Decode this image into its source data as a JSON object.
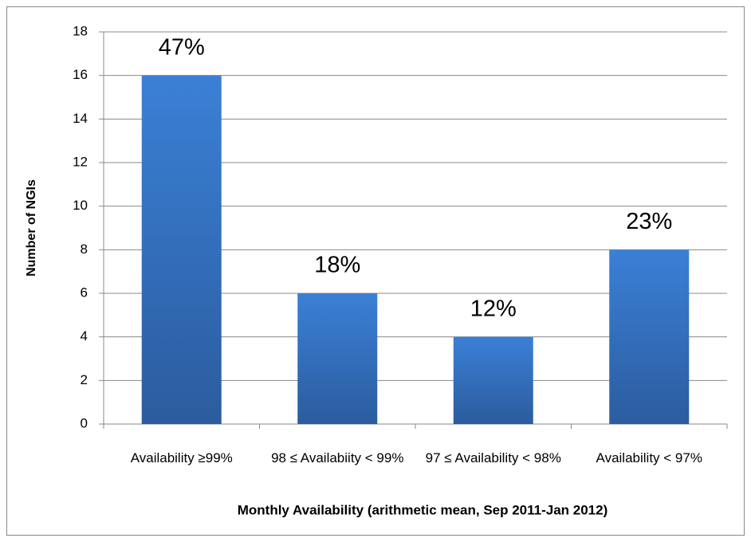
{
  "chart_data": {
    "type": "bar",
    "x_label": "Monthly Availability  (arithmetic mean, Sep 2011-Jan 2012)",
    "y_label": "Number of NGIs",
    "categories": [
      "Availability ≥99%",
      "98 ≤ Availabiity < 99%",
      "97 ≤ Availability < 98%",
      "Availability < 97%"
    ],
    "values": [
      16,
      6,
      4,
      8
    ],
    "share_labels": [
      "47%",
      "18%",
      "12%",
      "23%"
    ],
    "color": "#3a7fd5",
    "ylim": [
      0,
      18
    ],
    "yticks": [
      0,
      2,
      4,
      6,
      8,
      10,
      12,
      14,
      16,
      18
    ],
    "grid": true
  }
}
